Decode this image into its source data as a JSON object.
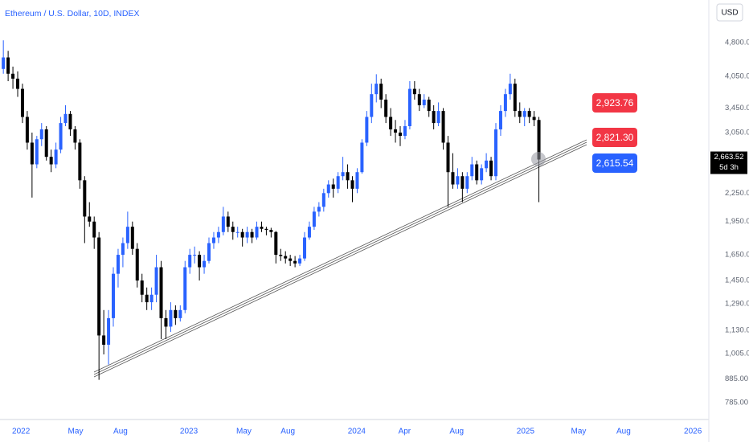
{
  "chart_data": {
    "type": "candlestick",
    "title": "Ethereum / U.S. Dollar, 10D, INDEX",
    "currency": "USD",
    "log_scale": true,
    "up_color": "#2962ff",
    "down_color": "#000000",
    "candles": [
      [
        4200,
        4850,
        4100,
        4450
      ],
      [
        4450,
        4600,
        3950,
        4100
      ],
      [
        4100,
        4250,
        3800,
        4000
      ],
      [
        4000,
        4150,
        3650,
        3800
      ],
      [
        3800,
        3900,
        3200,
        3300
      ],
      [
        3300,
        3400,
        2800,
        2900
      ],
      [
        2900,
        3050,
        2200,
        2600
      ],
      [
        2600,
        3000,
        2550,
        2950
      ],
      [
        2950,
        3200,
        2850,
        3100
      ],
      [
        3100,
        3150,
        2650,
        2700
      ],
      [
        2700,
        2800,
        2500,
        2600
      ],
      [
        2600,
        2900,
        2550,
        2800
      ],
      [
        2800,
        3300,
        2750,
        3200
      ],
      [
        3200,
        3500,
        3150,
        3350
      ],
      [
        3350,
        3400,
        3000,
        3100
      ],
      [
        3100,
        3150,
        2800,
        2900
      ],
      [
        2900,
        2950,
        2300,
        2400
      ],
      [
        2400,
        2450,
        1750,
        2000
      ],
      [
        2000,
        2150,
        1900,
        1950
      ],
      [
        1950,
        2000,
        1700,
        1800
      ],
      [
        1800,
        1850,
        880,
        1100
      ],
      [
        1100,
        1250,
        1000,
        1050
      ],
      [
        1050,
        1250,
        950,
        1200
      ],
      [
        1200,
        1550,
        1150,
        1500
      ],
      [
        1500,
        1700,
        1400,
        1650
      ],
      [
        1650,
        1800,
        1550,
        1750
      ],
      [
        1750,
        2050,
        1700,
        1900
      ],
      [
        1900,
        1950,
        1650,
        1700
      ],
      [
        1700,
        1750,
        1400,
        1450
      ],
      [
        1450,
        1500,
        1300,
        1350
      ],
      [
        1350,
        1400,
        1250,
        1300
      ],
      [
        1300,
        1400,
        1250,
        1350
      ],
      [
        1350,
        1650,
        1300,
        1550
      ],
      [
        1550,
        1600,
        1080,
        1200
      ],
      [
        1200,
        1250,
        1080,
        1150
      ],
      [
        1150,
        1300,
        1120,
        1250
      ],
      [
        1250,
        1280,
        1160,
        1200
      ],
      [
        1200,
        1280,
        1180,
        1250
      ],
      [
        1250,
        1600,
        1230,
        1550
      ],
      [
        1550,
        1700,
        1500,
        1650
      ],
      [
        1650,
        1720,
        1580,
        1650
      ],
      [
        1650,
        1680,
        1450,
        1550
      ],
      [
        1550,
        1650,
        1500,
        1600
      ],
      [
        1600,
        1800,
        1580,
        1750
      ],
      [
        1750,
        1850,
        1700,
        1800
      ],
      [
        1800,
        1900,
        1750,
        1850
      ],
      [
        1850,
        2100,
        1820,
        2000
      ],
      [
        2000,
        2050,
        1850,
        1900
      ],
      [
        1900,
        1950,
        1780,
        1850
      ],
      [
        1850,
        1900,
        1800,
        1850
      ],
      [
        1850,
        1880,
        1720,
        1800
      ],
      [
        1800,
        1900,
        1750,
        1850
      ],
      [
        1850,
        1880,
        1750,
        1800
      ],
      [
        1800,
        1950,
        1780,
        1900
      ],
      [
        1900,
        1950,
        1850,
        1880
      ],
      [
        1880,
        1900,
        1820,
        1870
      ],
      [
        1870,
        1890,
        1800,
        1850
      ],
      [
        1850,
        1860,
        1580,
        1650
      ],
      [
        1650,
        1700,
        1600,
        1640
      ],
      [
        1640,
        1680,
        1580,
        1620
      ],
      [
        1620,
        1650,
        1560,
        1600
      ],
      [
        1600,
        1640,
        1550,
        1580
      ],
      [
        1580,
        1650,
        1560,
        1620
      ],
      [
        1620,
        1850,
        1600,
        1800
      ],
      [
        1800,
        1950,
        1780,
        1900
      ],
      [
        1900,
        2100,
        1870,
        2050
      ],
      [
        2050,
        2150,
        2000,
        2100
      ],
      [
        2100,
        2300,
        2050,
        2250
      ],
      [
        2250,
        2400,
        2200,
        2350
      ],
      [
        2350,
        2420,
        2200,
        2300
      ],
      [
        2300,
        2500,
        2250,
        2450
      ],
      [
        2450,
        2700,
        2400,
        2500
      ],
      [
        2500,
        2600,
        2300,
        2400
      ],
      [
        2400,
        2450,
        2150,
        2300
      ],
      [
        2300,
        2550,
        2250,
        2500
      ],
      [
        2500,
        2950,
        2480,
        2900
      ],
      [
        2900,
        3400,
        2850,
        3300
      ],
      [
        3300,
        3900,
        3200,
        3700
      ],
      [
        3700,
        4090,
        3550,
        3900
      ],
      [
        3900,
        4000,
        3450,
        3600
      ],
      [
        3600,
        3700,
        3200,
        3300
      ],
      [
        3300,
        3450,
        3000,
        3100
      ],
      [
        3100,
        3250,
        2900,
        3050
      ],
      [
        3050,
        3150,
        2850,
        3000
      ],
      [
        3000,
        3250,
        2950,
        3150
      ],
      [
        3150,
        3950,
        3100,
        3800
      ],
      [
        3800,
        3950,
        3600,
        3700
      ],
      [
        3700,
        3800,
        3400,
        3500
      ],
      [
        3500,
        3700,
        3450,
        3600
      ],
      [
        3600,
        3650,
        3300,
        3400
      ],
      [
        3400,
        3500,
        3100,
        3200
      ],
      [
        3200,
        3550,
        3150,
        3400
      ],
      [
        3400,
        3450,
        2800,
        2900
      ],
      [
        2900,
        3000,
        2100,
        2500
      ],
      [
        2500,
        2750,
        2300,
        2350
      ],
      [
        2350,
        2550,
        2300,
        2450
      ],
      [
        2450,
        2500,
        2150,
        2300
      ],
      [
        2300,
        2500,
        2250,
        2450
      ],
      [
        2450,
        2700,
        2400,
        2600
      ],
      [
        2600,
        2650,
        2350,
        2400
      ],
      [
        2400,
        2600,
        2350,
        2550
      ],
      [
        2550,
        2750,
        2500,
        2650
      ],
      [
        2650,
        2700,
        2400,
        2450
      ],
      [
        2450,
        3200,
        2400,
        3100
      ],
      [
        3100,
        3500,
        3000,
        3400
      ],
      [
        3400,
        3800,
        3300,
        3700
      ],
      [
        3700,
        4100,
        3600,
        3900
      ],
      [
        3900,
        4000,
        3300,
        3400
      ],
      [
        3400,
        3550,
        3200,
        3300
      ],
      [
        3300,
        3450,
        3150,
        3400
      ],
      [
        3400,
        3450,
        3200,
        3300
      ],
      [
        3300,
        3400,
        3150,
        3250
      ],
      [
        3250,
        3300,
        2150,
        2663.52
      ]
    ],
    "xlim": [
      -0.7,
      147.2
    ],
    "xticks": [
      {
        "value": 3.7,
        "label": "2022"
      },
      {
        "value": 15.1,
        "label": "May"
      },
      {
        "value": 24.5,
        "label": "Aug"
      },
      {
        "value": 38.8,
        "label": "2023"
      },
      {
        "value": 50.3,
        "label": "May"
      },
      {
        "value": 59.5,
        "label": "Aug"
      },
      {
        "value": 73.9,
        "label": "2024"
      },
      {
        "value": 83.9,
        "label": "Apr"
      },
      {
        "value": 94.8,
        "label": "Aug"
      },
      {
        "value": 109.2,
        "label": "2025"
      },
      {
        "value": 120.3,
        "label": "May"
      },
      {
        "value": 129.7,
        "label": "Aug"
      },
      {
        "value": 144.2,
        "label": "2026"
      }
    ],
    "ylim": [
      721,
      5940
    ],
    "yticks": [
      {
        "value": 785,
        "label": "785.00"
      },
      {
        "value": 885,
        "label": "885.00"
      },
      {
        "value": 1005,
        "label": "1,005.00"
      },
      {
        "value": 1130,
        "label": "1,130.00"
      },
      {
        "value": 1290,
        "label": "1,290.00"
      },
      {
        "value": 1450,
        "label": "1,450.00"
      },
      {
        "value": 1650,
        "label": "1,650.00"
      },
      {
        "value": 1950,
        "label": "1,950.00"
      },
      {
        "value": 2250,
        "label": "2,250.00"
      },
      {
        "value": 3050,
        "label": "3,050.00"
      },
      {
        "value": 3450,
        "label": "3,450.00"
      },
      {
        "value": 4050,
        "label": "4,050.00"
      },
      {
        "value": 4800,
        "label": "4,800.00"
      }
    ],
    "price_tags": [
      {
        "label": "2,923.76",
        "color": "#f23645"
      },
      {
        "label": "2,821.30",
        "color": "#f23645"
      },
      {
        "label": "2,615.54",
        "color": "#2962ff"
      }
    ],
    "last_price": {
      "value": 2663.52,
      "label": "2,663.52"
    },
    "countdown": "5d 3h"
  }
}
